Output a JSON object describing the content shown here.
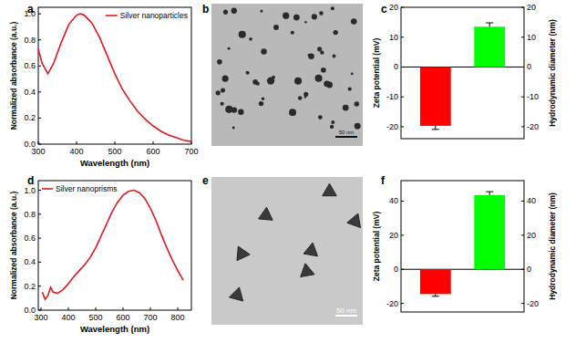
{
  "chart_data": [
    {
      "type": "line",
      "panel_label": "a",
      "x_label": "Wavelength (nm)",
      "y_label": "Normalized absorbance (a.u.)",
      "x": [
        300,
        310,
        325,
        340,
        360,
        380,
        400,
        410,
        420,
        440,
        460,
        480,
        500,
        520,
        540,
        560,
        580,
        600,
        620,
        640,
        660,
        680,
        700
      ],
      "series": [
        {
          "name": "Silver nanoparticles",
          "color": "#e0191e",
          "values": [
            0.73,
            0.62,
            0.54,
            0.62,
            0.78,
            0.92,
            0.99,
            1.0,
            0.99,
            0.93,
            0.82,
            0.68,
            0.54,
            0.42,
            0.33,
            0.25,
            0.19,
            0.14,
            0.1,
            0.07,
            0.05,
            0.03,
            0.02
          ]
        }
      ],
      "xlim": [
        300,
        700
      ],
      "xticks": [
        300,
        400,
        500,
        600,
        700
      ],
      "ylim": [
        0,
        1.05
      ],
      "yticks": [
        {
          "value": 0,
          "label": "0.0"
        },
        {
          "value": 0.2,
          "label": "0.2"
        },
        {
          "value": 0.4,
          "label": "0.4"
        },
        {
          "value": 0.6,
          "label": "0.6"
        },
        {
          "value": 0.8,
          "label": "0.8"
        },
        {
          "value": 1,
          "label": "1.0"
        }
      ],
      "legend": "upper right"
    },
    {
      "type": "image",
      "panel_label": "b",
      "scale_bar": "50 nm"
    },
    {
      "type": "bar",
      "panel_label": "c",
      "y_label": "Zeta potential (mV)",
      "y2_label": "Hydrodynamic diameter (nm)",
      "categories": [
        null,
        null
      ],
      "series": [
        {
          "color": "#ff0000",
          "values": [
            -19.7,
            null
          ],
          "errors": [
            1.2,
            null
          ]
        },
        {
          "color": "#00ff00",
          "axis": "y2",
          "values": [
            null,
            13.5
          ],
          "errors": [
            null,
            1.3
          ]
        }
      ],
      "ylim": [
        -24,
        20
      ],
      "yticks": [
        -20,
        -10,
        0,
        10,
        20
      ],
      "y2lim": [
        -24,
        20
      ],
      "y2ticks": [
        -20,
        -10,
        0,
        10,
        20
      ]
    },
    {
      "type": "line",
      "panel_label": "d",
      "x_label": "Wavelength (nm)",
      "y_label": "Normalized absorbance (a.u.)",
      "x": [
        305,
        315,
        325,
        335,
        345,
        360,
        380,
        400,
        420,
        440,
        460,
        480,
        500,
        520,
        540,
        560,
        580,
        600,
        620,
        640,
        660,
        680,
        700,
        720,
        740,
        760,
        780,
        800,
        820
      ],
      "series": [
        {
          "name": "Silver nanoprisms",
          "color": "#e0191e",
          "values": [
            0.15,
            0.09,
            0.12,
            0.19,
            0.15,
            0.14,
            0.17,
            0.22,
            0.28,
            0.33,
            0.38,
            0.44,
            0.52,
            0.62,
            0.72,
            0.82,
            0.9,
            0.96,
            0.99,
            1.0,
            0.98,
            0.93,
            0.85,
            0.75,
            0.63,
            0.52,
            0.42,
            0.33,
            0.25
          ]
        }
      ],
      "xlim": [
        290,
        850
      ],
      "xticks": [
        300,
        400,
        500,
        600,
        700,
        800
      ],
      "ylim": [
        0,
        1.08
      ],
      "yticks": [
        {
          "value": 0,
          "label": "0.0"
        },
        {
          "value": 0.2,
          "label": "0.2"
        },
        {
          "value": 0.4,
          "label": "0.4"
        },
        {
          "value": 0.6,
          "label": "0.6"
        },
        {
          "value": 0.8,
          "label": "0.8"
        },
        {
          "value": 1,
          "label": "1.0"
        }
      ],
      "legend": "upper left"
    },
    {
      "type": "image",
      "panel_label": "e",
      "scale_bar": "50 nm"
    },
    {
      "type": "bar",
      "panel_label": "f",
      "y_label": "Zeta potential (mV)",
      "y2_label": "Hydrodynamic diameter (nm)",
      "categories": [
        null,
        null
      ],
      "series": [
        {
          "color": "#ff0000",
          "values": [
            -14.5,
            null
          ],
          "errors": [
            1.3,
            null
          ]
        },
        {
          "color": "#00ff00",
          "axis": "y2",
          "values": [
            null,
            43.5
          ],
          "errors": [
            null,
            2.0
          ]
        }
      ],
      "ylim": [
        -25,
        52
      ],
      "yticks": [
        -20,
        0,
        20,
        40
      ],
      "y2lim": [
        -25,
        52
      ],
      "y2ticks": [
        -20,
        0,
        20,
        40
      ]
    }
  ]
}
